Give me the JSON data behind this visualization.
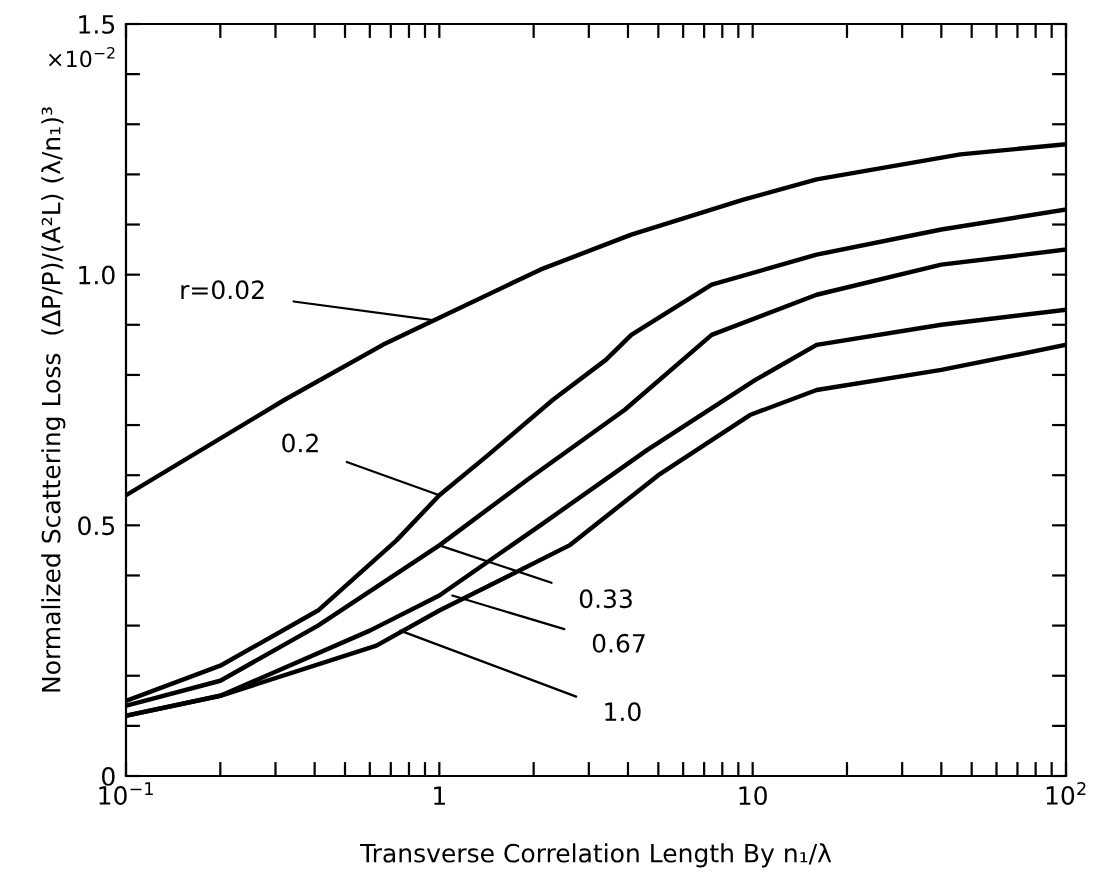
{
  "chart_data": {
    "type": "line",
    "xlabel": "Transverse Correlation Length By n₁/λ",
    "ylabel": "Normalized Scattering Loss  (ΔP/P)/(A²L) (λ/n₁)³",
    "log": "x",
    "xlim": [
      0.1,
      100
    ],
    "ylim": [
      0,
      1.5
    ],
    "xticks": [
      {
        "value": 0.1,
        "label": "10$^{−1}$"
      },
      {
        "value": 0.2,
        "label": null
      },
      {
        "value": 0.3,
        "label": null
      },
      {
        "value": 0.4,
        "label": null
      },
      {
        "value": 0.5,
        "label": null
      },
      {
        "value": 0.6,
        "label": null
      },
      {
        "value": 0.7,
        "label": null
      },
      {
        "value": 0.8,
        "label": null
      },
      {
        "value": 0.9,
        "label": null
      },
      1,
      {
        "value": 2,
        "label": null
      },
      {
        "value": 3,
        "label": null
      },
      {
        "value": 4,
        "label": null
      },
      {
        "value": 5,
        "label": null
      },
      {
        "value": 6,
        "label": null
      },
      {
        "value": 7,
        "label": null
      },
      {
        "value": 8,
        "label": null
      },
      {
        "value": 9,
        "label": null
      },
      10,
      {
        "value": 20,
        "label": null
      },
      {
        "value": 30,
        "label": null
      },
      {
        "value": 40,
        "label": null
      },
      {
        "value": 50,
        "label": null
      },
      {
        "value": 60,
        "label": null
      },
      {
        "value": 70,
        "label": null
      },
      {
        "value": 80,
        "label": null
      },
      {
        "value": 90,
        "label": null
      },
      {
        "value": 100,
        "label": "10$^{2}$"
      }
    ],
    "yticks": [
      0,
      {
        "value": 0.1,
        "label": null
      },
      {
        "value": 0.2,
        "label": null
      },
      {
        "value": 0.3,
        "label": null
      },
      {
        "value": 0.4,
        "label": null
      },
      0.5,
      {
        "value": 0.6,
        "label": null
      },
      {
        "value": 0.7,
        "label": null
      },
      {
        "value": 0.8,
        "label": null
      },
      {
        "value": 0.9,
        "label": null
      },
      {
        "value": 1.0,
        "label": "1.0"
      },
      {
        "value": 1.1,
        "label": null
      },
      {
        "value": 1.2,
        "label": null
      },
      {
        "value": 1.3,
        "label": null
      },
      {
        "value": 1.4,
        "label": null
      },
      1.5
    ],
    "grid": false,
    "legend": false,
    "marker": "none",
    "line_style": "solid",
    "series": [
      {
        "color": "#000000",
        "x": [
          0.1,
          0.32,
          0.66,
          0.97,
          2.1,
          4.1,
          9.4,
          16,
          46,
          100
        ],
        "values": [
          0.56,
          0.75,
          0.86,
          0.91,
          1.01,
          1.08,
          1.15,
          1.19,
          1.24,
          1.26
        ]
      },
      {
        "color": "#000000",
        "x": [
          0.1,
          0.2,
          0.41,
          0.73,
          1.0,
          1.43,
          2.3,
          3.4,
          4.1,
          7.4,
          16,
          40,
          100
        ],
        "values": [
          0.15,
          0.22,
          0.33,
          0.47,
          0.56,
          0.64,
          0.75,
          0.83,
          0.88,
          0.98,
          1.04,
          1.09,
          1.13
        ]
      },
      {
        "color": "#000000",
        "x": [
          0.1,
          0.2,
          0.41,
          1.0,
          1.9,
          3.9,
          7.4,
          16,
          40,
          100
        ],
        "values": [
          0.14,
          0.19,
          0.3,
          0.46,
          0.59,
          0.73,
          0.88,
          0.96,
          1.02,
          1.05
        ]
      },
      {
        "color": "#000000",
        "x": [
          0.1,
          0.2,
          0.6,
          1.0,
          2.1,
          4.6,
          10.2,
          16,
          40,
          100
        ],
        "values": [
          0.12,
          0.16,
          0.29,
          0.36,
          0.5,
          0.65,
          0.79,
          0.86,
          0.9,
          0.93
        ]
      },
      {
        "color": "#000000",
        "x": [
          0.1,
          0.2,
          0.63,
          1.0,
          2.6,
          5.0,
          9.8,
          16,
          40,
          100
        ],
        "values": [
          0.12,
          0.16,
          0.26,
          0.33,
          0.46,
          0.6,
          0.72,
          0.77,
          0.81,
          0.86
        ]
      }
    ],
    "annotations": [
      "×10$^{−2}$",
      {
        "text": "r=0.02",
        "x": 0.94,
        "y": 0.91
      },
      {
        "text": "0.2",
        "x": 1.0,
        "y": 0.56
      },
      {
        "text": "0.33",
        "x": 1.0,
        "y": 0.46
      },
      {
        "text": "0.67",
        "x": 1.1,
        "y": 0.36
      },
      {
        "text": "1.0",
        "x": 0.75,
        "y": 0.29
      }
    ]
  }
}
